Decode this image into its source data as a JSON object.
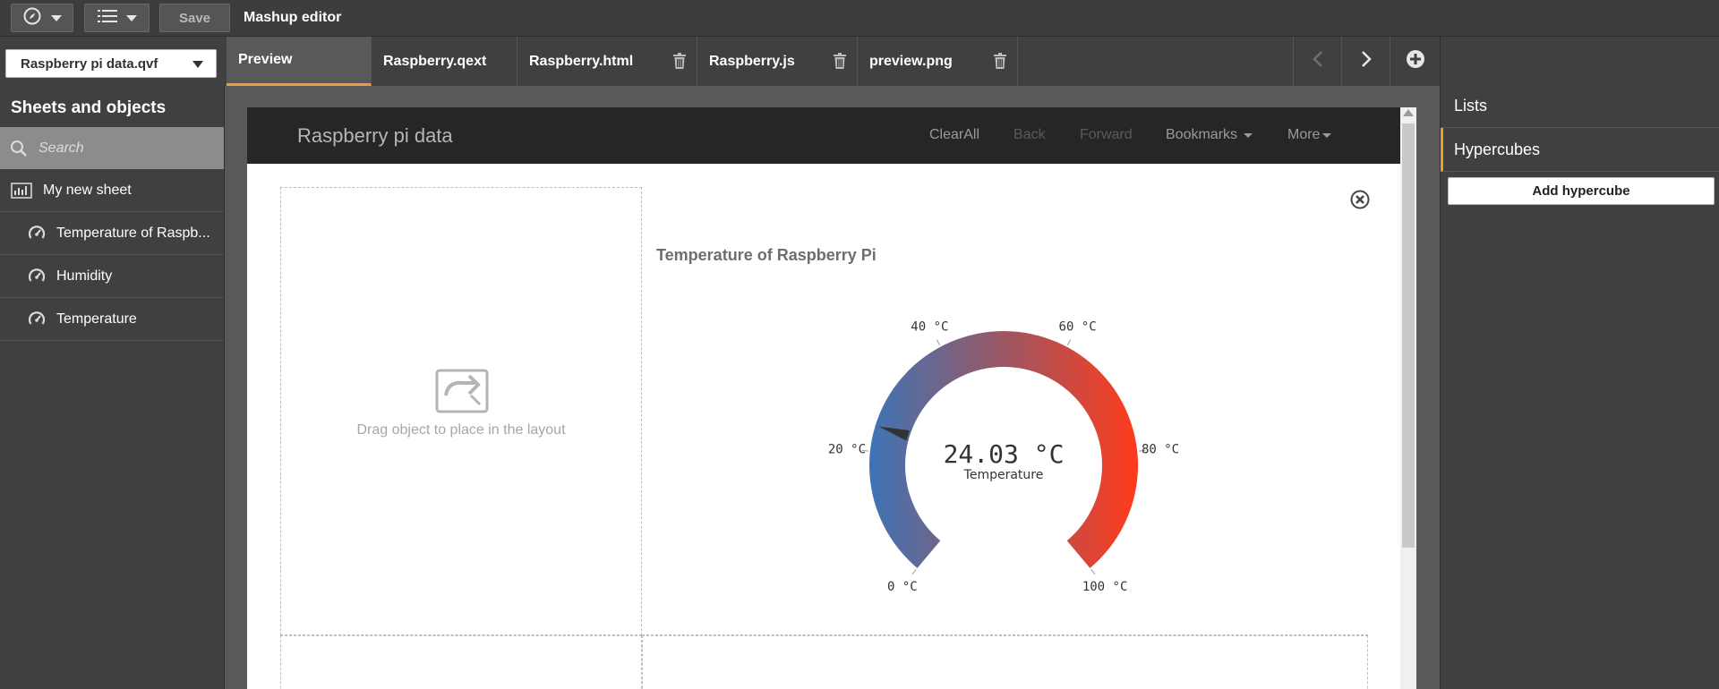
{
  "toolbar": {
    "save_label": "Save",
    "title": "Mashup editor",
    "nav_icon": "compass-icon",
    "list_icon": "list-icon"
  },
  "app_select": {
    "value": "Raspberry pi data.qvf"
  },
  "tabs": [
    {
      "label": "Preview",
      "active": true,
      "deletable": false
    },
    {
      "label": "Raspberry.qext",
      "active": false,
      "deletable": false
    },
    {
      "label": "Raspberry.html",
      "active": false,
      "deletable": true
    },
    {
      "label": "Raspberry.js",
      "active": false,
      "deletable": true
    },
    {
      "label": "preview.png",
      "active": false,
      "deletable": true
    }
  ],
  "left_panel": {
    "title": "Sheets and objects",
    "search_placeholder": "Search",
    "items": [
      {
        "label": "My new sheet",
        "icon": "sheet-icon",
        "indent": false
      },
      {
        "label": "Temperature of Raspberry Pi",
        "display": "Temperature of Raspb...",
        "icon": "gauge-icon",
        "indent": true
      },
      {
        "label": "Humidity",
        "icon": "gauge-icon",
        "indent": true
      },
      {
        "label": "Temperature",
        "icon": "gauge-icon",
        "indent": true
      }
    ]
  },
  "right_panel": {
    "lists_label": "Lists",
    "hypercubes_label": "Hypercubes",
    "add_hypercube_label": "Add hypercube",
    "active": "Hypercubes"
  },
  "preview": {
    "app_title": "Raspberry pi data",
    "nav": {
      "clear_all": "ClearAll",
      "back": "Back",
      "forward": "Forward",
      "bookmarks": "Bookmarks",
      "more": "More"
    },
    "drop_hint": "Drag object to place in the layout"
  },
  "accent_color": "#f39a36",
  "chart_data": {
    "type": "gauge",
    "title": "Temperature of Raspberry Pi",
    "value": 24.03,
    "value_label": "24.03 °C",
    "measure_label": "Temperature",
    "min": 0,
    "max": 100,
    "ticks": [
      {
        "value": 0,
        "label": "0 °C"
      },
      {
        "value": 20,
        "label": "20 °C"
      },
      {
        "value": 40,
        "label": "40 °C"
      },
      {
        "value": 60,
        "label": "60 °C"
      },
      {
        "value": 80,
        "label": "80 °C"
      },
      {
        "value": 100,
        "label": "100 °C"
      }
    ],
    "color_start": "#3d74b6",
    "color_mid": "#9c5763",
    "color_end": "#ff3b1c",
    "needle_color": "#333333"
  }
}
